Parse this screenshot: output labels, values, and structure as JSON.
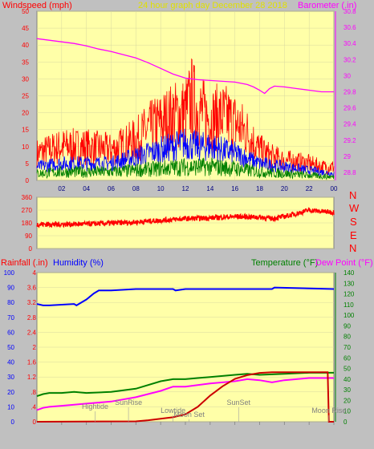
{
  "header": {
    "windspeed_label": "Windspeed (mph)",
    "graph_title": "24 hour graph day   December 28 2018",
    "barometer_label": "Barometer (.in)"
  },
  "direction_labels": [
    "N",
    "W",
    "S",
    "E",
    "N"
  ],
  "bottom_header": {
    "rainfall_label": "Rainfall (.in)",
    "humidity_label": "Humidity (%)",
    "temperature_label": "Temperature (°F)",
    "dewpoint_label": "Dew Point (°F)"
  },
  "colors": {
    "plot_bg": "#ffffa8",
    "outer_bg": "#c0c0c0",
    "red": "#ff0000",
    "blue": "#0000ff",
    "green": "#008000",
    "magenta": "#ff00ff",
    "dark_red": "#cc0000",
    "annotation": "#808080"
  },
  "chart_data": [
    {
      "type": "line",
      "name": "wind-barometer",
      "x_ticks": [
        "02",
        "04",
        "06",
        "08",
        "10",
        "12",
        "14",
        "16",
        "18",
        "20",
        "22",
        "00"
      ],
      "x_range_hours": [
        0,
        24
      ],
      "y_left": {
        "label": "Windspeed (mph)",
        "range": [
          0,
          50
        ],
        "ticks": [
          0,
          5,
          10,
          15,
          20,
          25,
          30,
          35,
          40,
          45,
          50
        ]
      },
      "y_right": {
        "label": "Barometer (.in)",
        "range": [
          28.7,
          30.8
        ],
        "ticks": [
          "28.8",
          "29",
          "29.2",
          "29.4",
          "29.6",
          "29.8",
          "30",
          "30.2",
          "30.4",
          "30.6",
          "30.8"
        ]
      },
      "series": [
        {
          "name": "Barometer",
          "axis": "right",
          "color": "#ff00ff",
          "x": [
            0,
            1,
            2,
            3,
            4,
            5,
            6,
            7,
            8,
            9,
            10,
            11,
            12,
            13,
            14,
            15,
            16,
            17,
            17.5,
            18,
            18.4,
            18.8,
            19.2,
            20,
            21,
            22,
            23,
            24
          ],
          "y": [
            30.46,
            30.44,
            30.42,
            30.4,
            30.37,
            30.33,
            30.3,
            30.26,
            30.22,
            30.16,
            30.09,
            30.02,
            29.97,
            29.95,
            29.94,
            29.93,
            29.92,
            29.89,
            29.86,
            29.82,
            29.78,
            29.84,
            29.87,
            29.86,
            29.84,
            29.82,
            29.8,
            29.8
          ]
        },
        {
          "name": "Wind Gust",
          "axis": "left",
          "color": "#ff0000",
          "x": [
            0,
            2,
            4,
            6,
            8,
            9,
            10,
            11,
            12,
            12.5,
            13,
            14,
            15,
            16,
            17,
            18,
            19,
            20,
            22,
            23,
            24
          ],
          "y": [
            8,
            10,
            10,
            9,
            12,
            15,
            17,
            19,
            20,
            24,
            21,
            18,
            19,
            17,
            14,
            9,
            7,
            6,
            5,
            4,
            4
          ]
        },
        {
          "name": "Wind Speed",
          "axis": "left",
          "color": "#0000ff",
          "x": [
            0,
            2,
            4,
            6,
            8,
            10,
            12,
            13,
            14,
            16,
            18,
            20,
            22,
            24
          ],
          "y": [
            4,
            5,
            5,
            5,
            7,
            9,
            11,
            10,
            10,
            8,
            5,
            4,
            3,
            2
          ]
        },
        {
          "name": "Wind Avg",
          "axis": "left",
          "color": "#008000",
          "x": [
            0,
            2,
            4,
            6,
            8,
            10,
            12,
            14,
            16,
            18,
            20,
            22,
            24
          ],
          "y": [
            2,
            2.5,
            2.5,
            2.5,
            3,
            3.5,
            4,
            4,
            3.5,
            2.5,
            2,
            1.5,
            1
          ]
        }
      ]
    },
    {
      "type": "line",
      "name": "wind-direction",
      "x_range_hours": [
        0,
        24
      ],
      "y_left": {
        "range": [
          0,
          360
        ],
        "ticks": [
          0,
          90,
          180,
          270,
          360
        ]
      },
      "series": [
        {
          "name": "Wind Direction",
          "color": "#ff0000",
          "x": [
            0,
            2,
            4,
            6,
            8,
            10,
            12,
            14,
            16,
            18,
            19,
            20,
            21,
            22,
            23,
            24
          ],
          "y": [
            170,
            170,
            172,
            178,
            185,
            198,
            210,
            215,
            225,
            220,
            210,
            225,
            245,
            270,
            260,
            255
          ]
        }
      ]
    },
    {
      "type": "line",
      "name": "rain-humidity-temp",
      "x_range_hours": [
        0,
        24
      ],
      "y_left_outer": {
        "label": "Rainfall (.in)",
        "range": [
          0,
          4
        ],
        "ticks": [
          "0",
          ".4",
          ".8",
          "1.2",
          "1.6",
          "2",
          "2.4",
          "2.8",
          "3.2",
          "3.6",
          "4"
        ]
      },
      "y_left_inner": {
        "label": "Humidity (%)",
        "range": [
          0,
          100
        ],
        "ticks": [
          0,
          10,
          20,
          30,
          40,
          50,
          60,
          70,
          80,
          90,
          100
        ]
      },
      "y_right": {
        "label": "Temperature (°F)",
        "range": [
          0,
          140
        ],
        "ticks": [
          0,
          10,
          20,
          30,
          40,
          50,
          60,
          70,
          80,
          90,
          100,
          110,
          120,
          130,
          140
        ]
      },
      "series": [
        {
          "name": "Humidity",
          "axis": "left_inner",
          "color": "#0000ff",
          "x": [
            0,
            0.5,
            1,
            3,
            3.2,
            4,
            4.6,
            5,
            6,
            8,
            10,
            11,
            11.2,
            12,
            19,
            19.2,
            24
          ],
          "y": [
            79,
            78,
            78,
            79,
            78,
            82,
            86,
            88,
            88,
            89,
            89,
            89,
            88,
            89,
            89,
            90,
            89
          ]
        },
        {
          "name": "Temperature",
          "axis": "right",
          "color": "#008000",
          "x": [
            0,
            0.5,
            1,
            2,
            3,
            4,
            6,
            8,
            10,
            11,
            12,
            14,
            16,
            17,
            18,
            20,
            22,
            24
          ],
          "y": [
            24,
            26,
            27,
            27,
            28,
            27,
            28,
            31,
            38,
            40,
            40,
            42,
            44,
            45,
            44,
            45,
            46,
            46
          ]
        },
        {
          "name": "Dew Point",
          "axis": "right",
          "color": "#ff00ff",
          "x": [
            0,
            0.5,
            1,
            2,
            3,
            4,
            6,
            8,
            10,
            11,
            12,
            14,
            16,
            17,
            18,
            19,
            20,
            22,
            24
          ],
          "y": [
            11,
            13,
            14,
            15,
            16,
            17,
            19,
            23,
            29,
            33,
            33,
            36,
            38,
            40,
            39,
            37,
            39,
            41,
            41
          ]
        },
        {
          "name": "Rainfall",
          "axis": "left_outer",
          "color": "#cc0000",
          "x": [
            0,
            8,
            9,
            10,
            11,
            12,
            13,
            14,
            15,
            16,
            17,
            18,
            19,
            20,
            22,
            23.5,
            23.6,
            24
          ],
          "y": [
            0,
            0.01,
            0.04,
            0.08,
            0.12,
            0.2,
            0.4,
            0.7,
            0.95,
            1.15,
            1.25,
            1.31,
            1.33,
            1.33,
            1.33,
            1.33,
            0,
            0
          ]
        }
      ],
      "annotations": [
        {
          "text": "Hightide",
          "x": 4.7,
          "row": 2
        },
        {
          "text": "SunRise",
          "x": 7.4,
          "row": 1
        },
        {
          "text": "Lowtide",
          "x": 11.0,
          "row": 3
        },
        {
          "text": "Moon Set",
          "x": 12.3,
          "row": 4
        },
        {
          "text": "SunSet",
          "x": 16.3,
          "row": 1
        },
        {
          "text": "Moon Rise",
          "x": 23.6,
          "row": 3
        }
      ]
    }
  ]
}
